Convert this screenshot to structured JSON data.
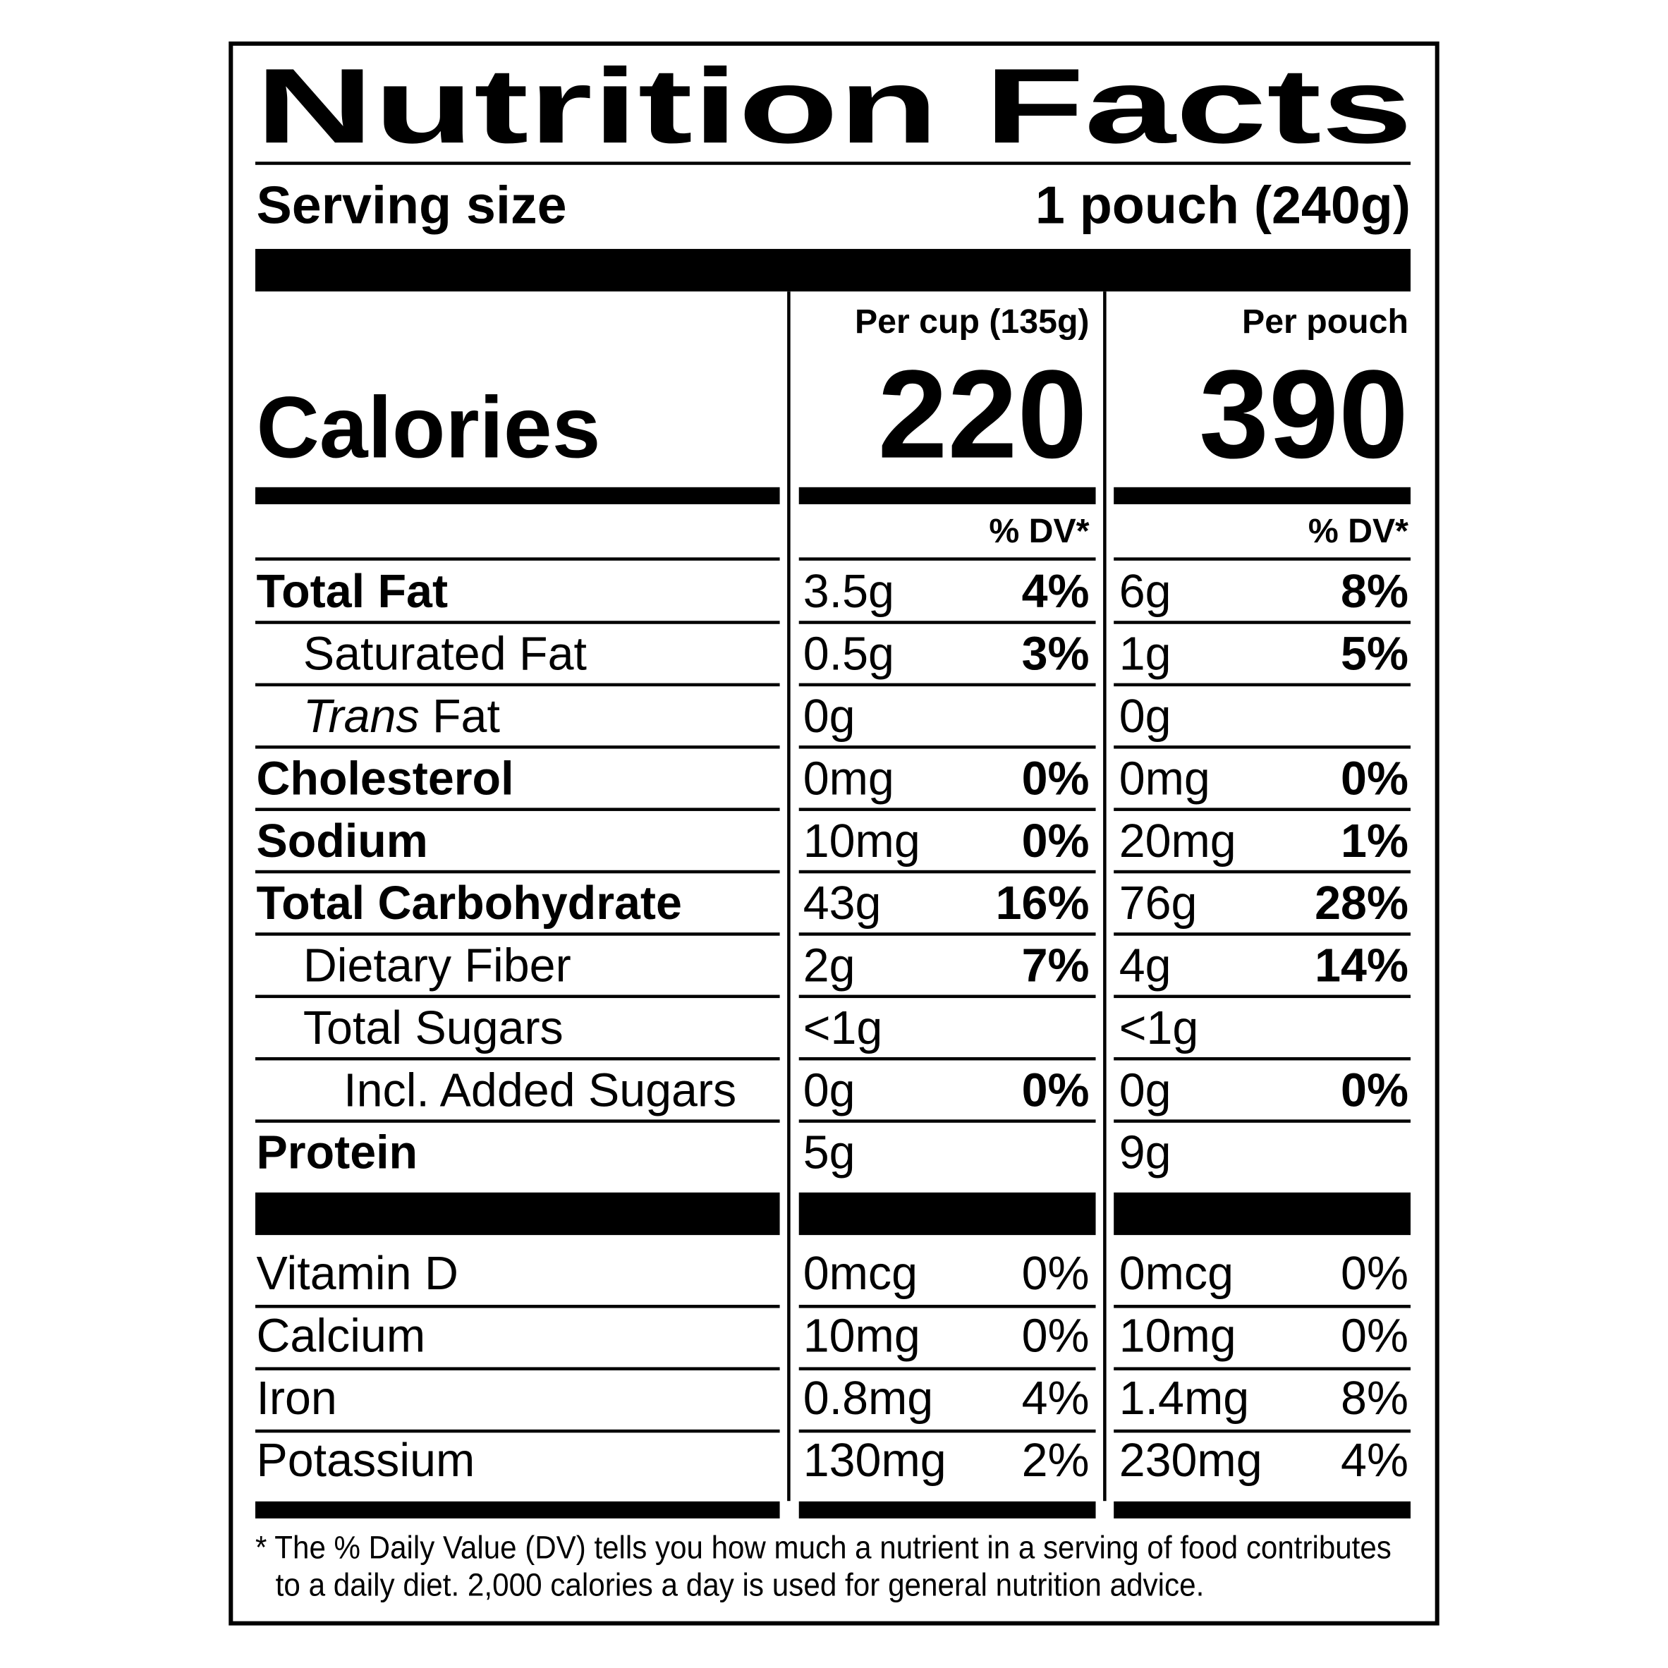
{
  "title": "Nutrition Facts",
  "serving": {
    "label": "Serving size",
    "value": "1 pouch (240g)"
  },
  "columns": [
    "Per cup (135g)",
    "Per pouch"
  ],
  "calories": {
    "label": "Calories",
    "values": [
      "220",
      "390"
    ]
  },
  "dv_headers": [
    "% DV*",
    "% DV*"
  ],
  "nutrients": [
    {
      "name": "Total Fat",
      "bold": true,
      "indent": 0,
      "cells": [
        {
          "amount": "3.5g",
          "dv": "4%"
        },
        {
          "amount": "6g",
          "dv": "8%"
        }
      ]
    },
    {
      "name": "Saturated Fat",
      "bold": false,
      "indent": 1,
      "cells": [
        {
          "amount": "0.5g",
          "dv": "3%"
        },
        {
          "amount": "1g",
          "dv": "5%"
        }
      ]
    },
    {
      "name_italic": "Trans",
      "name": "Fat",
      "bold": false,
      "indent": 1,
      "cells": [
        {
          "amount": "0g"
        },
        {
          "amount": "0g"
        }
      ]
    },
    {
      "name": "Cholesterol",
      "bold": true,
      "indent": 0,
      "cells": [
        {
          "amount": "0mg",
          "dv": "0%"
        },
        {
          "amount": "0mg",
          "dv": "0%"
        }
      ]
    },
    {
      "name": "Sodium",
      "bold": true,
      "indent": 0,
      "cells": [
        {
          "amount": "10mg",
          "dv": "0%"
        },
        {
          "amount": "20mg",
          "dv": "1%"
        }
      ]
    },
    {
      "name": "Total Carbohydrate",
      "bold": true,
      "indent": 0,
      "cells": [
        {
          "amount": "43g",
          "dv": "16%"
        },
        {
          "amount": "76g",
          "dv": "28%"
        }
      ]
    },
    {
      "name": "Dietary Fiber",
      "bold": false,
      "indent": 1,
      "cells": [
        {
          "amount": "2g",
          "dv": "7%"
        },
        {
          "amount": "4g",
          "dv": "14%"
        }
      ]
    },
    {
      "name": "Total Sugars",
      "bold": false,
      "indent": 1,
      "cells": [
        {
          "amount": "<1g"
        },
        {
          "amount": "<1g"
        }
      ]
    },
    {
      "name": "Incl. Added Sugars",
      "bold": false,
      "indent": 2,
      "cells": [
        {
          "amount": "0g",
          "dv": "0%"
        },
        {
          "amount": "0g",
          "dv": "0%"
        }
      ]
    },
    {
      "name": "Protein",
      "bold": true,
      "indent": 0,
      "cells": [
        {
          "amount": "5g"
        },
        {
          "amount": "9g"
        }
      ]
    }
  ],
  "vitamins": [
    {
      "name": "Vitamin D",
      "cells": [
        {
          "amount": "0mcg",
          "dv": "0%"
        },
        {
          "amount": "0mcg",
          "dv": "0%"
        }
      ]
    },
    {
      "name": "Calcium",
      "cells": [
        {
          "amount": "10mg",
          "dv": "0%"
        },
        {
          "amount": "10mg",
          "dv": "0%"
        }
      ]
    },
    {
      "name": "Iron",
      "cells": [
        {
          "amount": "0.8mg",
          "dv": "4%"
        },
        {
          "amount": "1.4mg",
          "dv": "8%"
        }
      ]
    },
    {
      "name": "Potassium",
      "cells": [
        {
          "amount": "130mg",
          "dv": "2%"
        },
        {
          "amount": "230mg",
          "dv": "4%"
        }
      ]
    }
  ],
  "footnote": [
    "* The % Daily Value (DV) tells you how much a nutrient in a serving of food contributes",
    "to a daily diet. 2,000 calories a day is used for general nutrition advice."
  ]
}
